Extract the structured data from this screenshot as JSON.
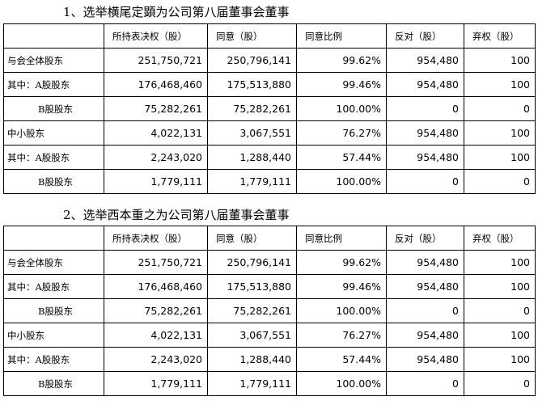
{
  "sections": [
    {
      "title": "1、选举横尾定顕为公司第八届董事会董事",
      "headers": [
        "",
        "所持表决权（股）",
        "同意（股）",
        "同意比例",
        "反对（股）",
        "弃权（股）"
      ],
      "rows": [
        {
          "label": "与会全体股东",
          "total": "251,750,721",
          "agree": "250,796,141",
          "ratio": "99.62%",
          "oppose": "954,480",
          "abstain": "100"
        },
        {
          "label": "其中：A股股东",
          "total": "176,468,460",
          "agree": "175,513,880",
          "ratio": "99.46%",
          "oppose": "954,480",
          "abstain": "100"
        },
        {
          "label": "B股股东",
          "total": "75,282,261",
          "agree": "75,282,261",
          "ratio": "100.00%",
          "oppose": "0",
          "abstain": "0"
        },
        {
          "label": "中小股东",
          "total": "4,022,131",
          "agree": "3,067,551",
          "ratio": "76.27%",
          "oppose": "954,480",
          "abstain": "100"
        },
        {
          "label": "其中：A股股东",
          "total": "2,243,020",
          "agree": "1,288,440",
          "ratio": "57.44%",
          "oppose": "954,480",
          "abstain": "100"
        },
        {
          "label": "B股股东",
          "total": "1,779,111",
          "agree": "1,779,111",
          "ratio": "100.00%",
          "oppose": "0",
          "abstain": "0"
        }
      ]
    },
    {
      "title": "2、选举西本重之为公司第八届董事会董事",
      "headers": [
        "",
        "所持表决权（股）",
        "同意（股）",
        "同意比例",
        "反对（股）",
        "弃权（股）"
      ],
      "rows": [
        {
          "label": "与会全体股东",
          "total": "251,750,721",
          "agree": "250,796,141",
          "ratio": "99.62%",
          "oppose": "954,480",
          "abstain": "100"
        },
        {
          "label": "其中：A股股东",
          "total": "176,468,460",
          "agree": "175,513,880",
          "ratio": "99.46%",
          "oppose": "954,480",
          "abstain": "100"
        },
        {
          "label": "B股股东",
          "total": "75,282,261",
          "agree": "75,282,261",
          "ratio": "100.00%",
          "oppose": "0",
          "abstain": "0"
        },
        {
          "label": "中小股东",
          "total": "4,022,131",
          "agree": "3,067,551",
          "ratio": "76.27%",
          "oppose": "954,480",
          "abstain": "100"
        },
        {
          "label": "其中：A股股东",
          "total": "2,243,020",
          "agree": "1,288,440",
          "ratio": "57.44%",
          "oppose": "954,480",
          "abstain": "100"
        },
        {
          "label": "B股股东",
          "total": "1,779,111",
          "agree": "1,779,111",
          "ratio": "100.00%",
          "oppose": "0",
          "abstain": "0"
        }
      ]
    }
  ]
}
